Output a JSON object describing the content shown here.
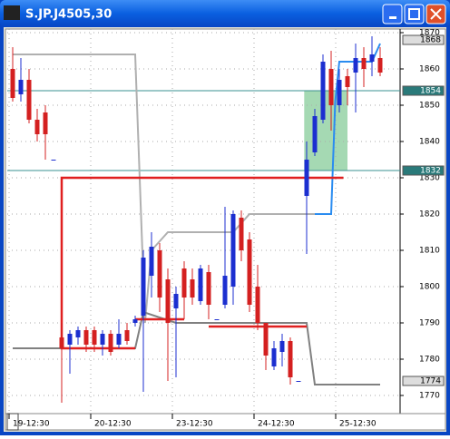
{
  "window": {
    "title": "S.JP.J4505,30"
  },
  "chart_data": {
    "type": "candlestick",
    "categories": [
      "19-12:30",
      null,
      null,
      null,
      null,
      null,
      null,
      null,
      null,
      null,
      "20-12:30",
      null,
      null,
      null,
      null,
      null,
      null,
      null,
      null,
      null,
      "23-12:30",
      null,
      null,
      null,
      null,
      null,
      null,
      null,
      null,
      null,
      "24-12:30",
      null,
      null,
      null,
      null,
      null,
      null,
      null,
      null,
      null,
      "25-12:30",
      null,
      null,
      null,
      null,
      null
    ],
    "open": [
      1860,
      1853,
      1857,
      1846,
      1848,
      1835,
      1786,
      1784,
      1786,
      1788,
      1788,
      1784,
      1787,
      1784,
      1788,
      1790,
      1792,
      1803,
      1810,
      1802,
      1794,
      1805,
      1802,
      1796,
      1804,
      1791,
      1795,
      1800,
      1819,
      1813,
      1800,
      1790,
      1778,
      1782,
      1785,
      1774,
      1825,
      1837,
      1846,
      1860,
      1850,
      1858,
      1859,
      1863,
      1862,
      1863
    ],
    "high": [
      1866,
      1863,
      1860,
      1849,
      1850,
      1835,
      1790,
      1788,
      1789,
      1789,
      1789,
      1788,
      1788,
      1791,
      1790,
      1792,
      1810,
      1815,
      1812,
      1805,
      1800,
      1807,
      1805,
      1806,
      1806,
      1791,
      1822,
      1821,
      1821,
      1815,
      1806,
      1790,
      1785,
      1787,
      1786,
      1774,
      1840,
      1849,
      1864,
      1865,
      1860,
      1860,
      1867,
      1866,
      1869,
      1866
    ],
    "low": [
      1851,
      1851,
      1845,
      1840,
      1835,
      1835,
      1768,
      1776,
      1784,
      1782,
      1782,
      1781,
      1781,
      1783,
      1784,
      1789,
      1771,
      1797,
      1793,
      1774,
      1775,
      1791,
      1795,
      1795,
      1791,
      1791,
      1794,
      1795,
      1807,
      1793,
      1788,
      1777,
      1777,
      1778,
      1773,
      1774,
      1809,
      1836,
      1845,
      1843,
      1848,
      1850,
      1848,
      1855,
      1858,
      1858
    ],
    "close": [
      1852,
      1857,
      1846,
      1842,
      1842,
      1835,
      1783,
      1787,
      1788,
      1784,
      1784,
      1787,
      1782,
      1787,
      1785,
      1791,
      1808,
      1811,
      1797,
      1790,
      1798,
      1797,
      1797,
      1805,
      1795,
      1791,
      1803,
      1820,
      1810,
      1795,
      1790,
      1781,
      1783,
      1785,
      1775,
      1774,
      1835,
      1847,
      1862,
      1850,
      1857,
      1855,
      1863,
      1860,
      1864,
      1859
    ],
    "up_color": "#1c2fd0",
    "down_color": "#d42020",
    "lines": [
      {
        "color": "#b0b0b0",
        "x": [
          0,
          15,
          16.2,
          17,
          19,
          27,
          29,
          37
        ],
        "values": [
          1864,
          1864,
          1790,
          1810,
          1815,
          1815,
          1820,
          1820
        ]
      },
      {
        "color": "#808080",
        "x": [
          0,
          15,
          16,
          20,
          36,
          37,
          45
        ],
        "values": [
          1783,
          1783,
          1793,
          1790,
          1790,
          1773,
          1773
        ]
      },
      {
        "color": "#2a8cf0",
        "x": [
          37,
          39,
          39.5,
          40,
          44,
          45
        ],
        "values": [
          1820,
          1820,
          1851,
          1862,
          1862,
          1867
        ]
      },
      {
        "color": "#e02020",
        "x": [
          15,
          6,
          6,
          40.5
        ],
        "values": [
          1783,
          1783,
          1830,
          1830
        ]
      },
      {
        "color": "#e02020",
        "x": [
          15,
          21
        ],
        "values": [
          1791,
          1791
        ]
      },
      {
        "color": "#e02020",
        "x": [
          24,
          36
        ],
        "values": [
          1789,
          1789
        ]
      }
    ],
    "hlines": [
      1854,
      1832
    ],
    "hline_color": "#3a9090",
    "markers": [
      1868,
      1854,
      1832,
      1774
    ],
    "highlight": {
      "x": [
        35.7,
        41
      ],
      "range": [
        1832,
        1854
      ],
      "color": "#8fd0a0"
    },
    "ylim": [
      1770,
      1870
    ],
    "yticks": [
      1770,
      1780,
      1790,
      1800,
      1810,
      1820,
      1830,
      1840,
      1850,
      1860,
      1870
    ],
    "grid": true
  }
}
